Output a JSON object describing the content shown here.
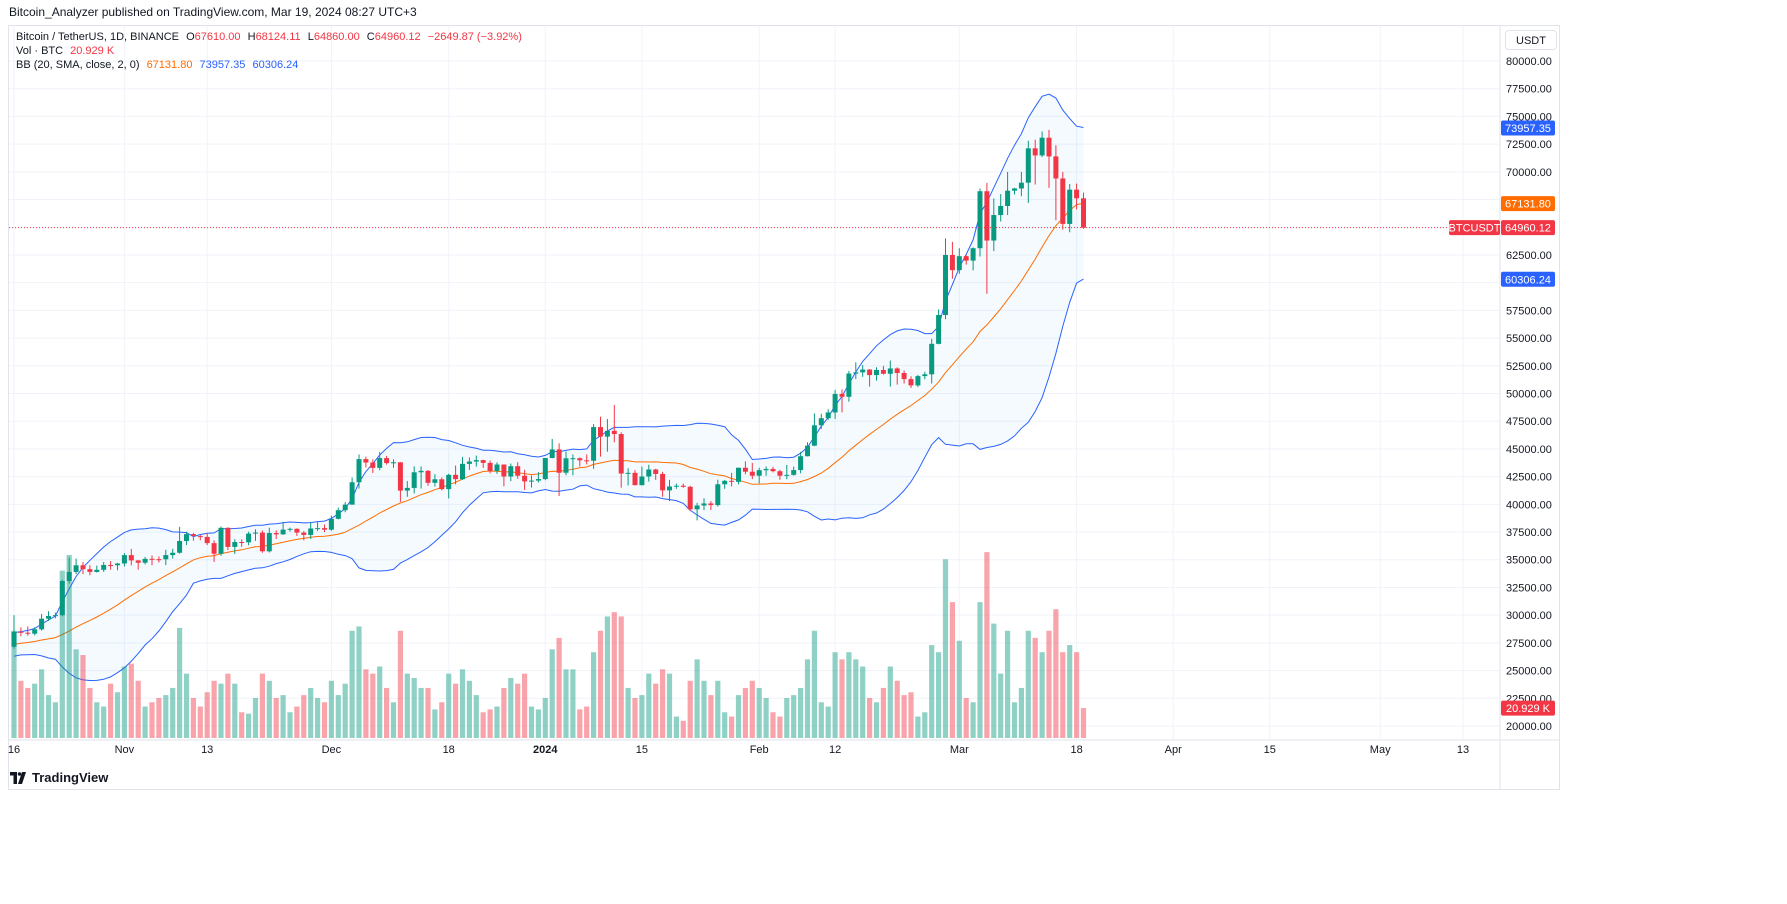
{
  "publisher_line": "Bitcoin_Analyzer published on TradingView.com, Mar 19, 2024 08:27 UTC+3",
  "legend": {
    "symbol": "Bitcoin / TetherUS, 1D, BINANCE",
    "o_label": "O",
    "o": "67610.00",
    "h_label": "H",
    "h": "68124.11",
    "l_label": "L",
    "l": "64860.00",
    "c_label": "C",
    "c": "64960.12",
    "change": "−2649.87 (−3.92%)",
    "vol_label": "Vol · BTC",
    "vol": "20.929 K",
    "bb_label": "BB (20, SMA, close, 2, 0)",
    "bb_mid": "67131.80",
    "bb_upper": "73957.35",
    "bb_lower": "60306.24"
  },
  "price_axis": {
    "unit": "USDT",
    "ticks": [
      "80000.00",
      "77500.00",
      "75000.00",
      "72500.00",
      "70000.00",
      "62500.00",
      "57500.00",
      "55000.00",
      "52500.00",
      "50000.00",
      "47500.00",
      "45000.00",
      "42500.00",
      "40000.00",
      "37500.00",
      "35000.00",
      "32500.00",
      "30000.00",
      "27500.00",
      "25000.00",
      "22500.00",
      "20000.00"
    ],
    "badges": {
      "upper": {
        "text": "73957.35",
        "value": 73957.35,
        "color": "#2962FF"
      },
      "mid": {
        "text": "67131.80",
        "value": 67131.8,
        "color": "#FF6D00"
      },
      "last": {
        "text": "64960.12",
        "value": 64960.12,
        "color": "#F23645",
        "symbol": "BTCUSDT"
      },
      "lower": {
        "text": "60306.24",
        "value": 60306.24,
        "color": "#2962FF"
      },
      "volume": {
        "text": "20.929 K",
        "value": 20.929,
        "color": "#F23645"
      }
    }
  },
  "time_axis": {
    "ticks": [
      {
        "label": "16",
        "date": "2023-10-16"
      },
      {
        "label": "Nov",
        "date": "2023-11-01"
      },
      {
        "label": "13",
        "date": "2023-11-13"
      },
      {
        "label": "Dec",
        "date": "2023-12-01"
      },
      {
        "label": "18",
        "date": "2023-12-18"
      },
      {
        "label": "2024",
        "date": "2024-01-01"
      },
      {
        "label": "15",
        "date": "2024-01-15"
      },
      {
        "label": "Feb",
        "date": "2024-02-01"
      },
      {
        "label": "12",
        "date": "2024-02-12"
      },
      {
        "label": "Mar",
        "date": "2024-03-01"
      },
      {
        "label": "18",
        "date": "2024-03-18"
      },
      {
        "label": "Apr",
        "date": "2024-04-01"
      },
      {
        "label": "15",
        "date": "2024-04-15"
      },
      {
        "label": "May",
        "date": "2024-05-01"
      },
      {
        "label": "13",
        "date": "2024-05-13"
      }
    ]
  },
  "footer": {
    "brand": "TradingView"
  },
  "colors": {
    "up": "#089981",
    "down": "#F23645",
    "bb_band": "#2962FF",
    "bb_mid": "#FF6D00",
    "grid": "#f0f3fa"
  },
  "chart_data": {
    "type": "candlestick",
    "symbol": "BTCUSDT",
    "interval": "1D",
    "first_date": "2023-10-16",
    "ylim": [
      20000,
      80000
    ],
    "grid": true,
    "indicators": [
      "Volume (BTC, K)",
      "Bollinger Bands (20, SMA, close, 2, 0)"
    ],
    "candles_ohlcv": [
      [
        27150,
        30000,
        26970,
        28500,
        75
      ],
      [
        28500,
        28900,
        28100,
        28415,
        40
      ],
      [
        28415,
        28980,
        28150,
        28330,
        35
      ],
      [
        28330,
        28900,
        28180,
        28720,
        38
      ],
      [
        28720,
        30100,
        28600,
        29680,
        48
      ],
      [
        29680,
        30350,
        29480,
        29920,
        30
      ],
      [
        29920,
        30230,
        29720,
        30000,
        25
      ],
      [
        30000,
        33200,
        29900,
        33080,
        117
      ],
      [
        33080,
        35200,
        32850,
        33900,
        128
      ],
      [
        33900,
        35100,
        33700,
        34500,
        62
      ],
      [
        34500,
        34800,
        33700,
        34150,
        58
      ],
      [
        34150,
        34500,
        33600,
        33900,
        35
      ],
      [
        33900,
        34470,
        33850,
        34090,
        25
      ],
      [
        34090,
        34800,
        33900,
        34530,
        22
      ],
      [
        34530,
        34880,
        34100,
        34500,
        38
      ],
      [
        34500,
        34720,
        34050,
        34660,
        32
      ],
      [
        34660,
        35600,
        34400,
        35420,
        50
      ],
      [
        35420,
        35980,
        34500,
        34940,
        52
      ],
      [
        34940,
        34950,
        34100,
        34730,
        40
      ],
      [
        34730,
        35250,
        34570,
        35080,
        22
      ],
      [
        35080,
        35380,
        34500,
        35050,
        25
      ],
      [
        35050,
        35300,
        34750,
        35040,
        28
      ],
      [
        35040,
        35900,
        34520,
        35420,
        30
      ],
      [
        35420,
        35990,
        35110,
        35630,
        35
      ],
      [
        35630,
        37970,
        35540,
        36690,
        77
      ],
      [
        36690,
        37530,
        36330,
        37310,
        45
      ],
      [
        37310,
        37420,
        36720,
        37130,
        28
      ],
      [
        37130,
        37230,
        36760,
        37060,
        22
      ],
      [
        37060,
        37420,
        36320,
        36500,
        32
      ],
      [
        36500,
        36750,
        34800,
        35540,
        40
      ],
      [
        35540,
        37990,
        35360,
        37880,
        38
      ],
      [
        37880,
        37930,
        35870,
        36160,
        45
      ],
      [
        36160,
        36850,
        35520,
        36600,
        38
      ],
      [
        36600,
        36850,
        36160,
        36570,
        18
      ],
      [
        36570,
        37530,
        36300,
        37360,
        17
      ],
      [
        37360,
        37750,
        36700,
        37450,
        28
      ],
      [
        37450,
        37650,
        35630,
        35760,
        45
      ],
      [
        35760,
        37880,
        35650,
        37410,
        40
      ],
      [
        37410,
        37650,
        36870,
        37290,
        28
      ],
      [
        37290,
        38420,
        37250,
        37720,
        30
      ],
      [
        37720,
        37900,
        37540,
        37790,
        18
      ],
      [
        37790,
        37830,
        37150,
        37450,
        22
      ],
      [
        37450,
        37580,
        36750,
        37240,
        30
      ],
      [
        37240,
        38380,
        36880,
        37820,
        35
      ],
      [
        37820,
        38450,
        37600,
        37850,
        28
      ],
      [
        37850,
        38170,
        37500,
        37710,
        25
      ],
      [
        37710,
        38970,
        37610,
        38690,
        40
      ],
      [
        38690,
        39700,
        38650,
        39470,
        30
      ],
      [
        39470,
        40200,
        39290,
        39970,
        38
      ],
      [
        39970,
        42420,
        39970,
        41990,
        75
      ],
      [
        41990,
        44490,
        41430,
        44080,
        78
      ],
      [
        44080,
        44300,
        43330,
        43770,
        48
      ],
      [
        43770,
        44050,
        42830,
        43290,
        45
      ],
      [
        43290,
        44730,
        43080,
        44170,
        50
      ],
      [
        44170,
        44370,
        43580,
        43720,
        35
      ],
      [
        43720,
        44050,
        43300,
        43790,
        25
      ],
      [
        43790,
        43800,
        40220,
        41240,
        75
      ],
      [
        41240,
        42100,
        40680,
        41480,
        45
      ],
      [
        41480,
        43430,
        40980,
        42890,
        42
      ],
      [
        42890,
        43420,
        41420,
        43020,
        35
      ],
      [
        43020,
        43100,
        41660,
        41940,
        35
      ],
      [
        41940,
        42720,
        41600,
        42260,
        20
      ],
      [
        42260,
        42420,
        41250,
        41370,
        25
      ],
      [
        41370,
        42760,
        40530,
        42660,
        45
      ],
      [
        42660,
        43500,
        41800,
        42270,
        38
      ],
      [
        42270,
        44280,
        42190,
        43650,
        48
      ],
      [
        43650,
        44230,
        43100,
        43860,
        40
      ],
      [
        43860,
        44400,
        43400,
        43990,
        30
      ],
      [
        43990,
        44020,
        43290,
        43740,
        18
      ],
      [
        43740,
        43950,
        42800,
        43010,
        20
      ],
      [
        43010,
        43800,
        42750,
        43590,
        22
      ],
      [
        43590,
        43600,
        41620,
        42510,
        35
      ],
      [
        42510,
        43680,
        42100,
        43440,
        42
      ],
      [
        43440,
        43800,
        42300,
        42580,
        38
      ],
      [
        42580,
        43120,
        41300,
        42070,
        45
      ],
      [
        42070,
        42600,
        41520,
        42140,
        22
      ],
      [
        42140,
        42900,
        41970,
        42280,
        20
      ],
      [
        42280,
        44180,
        42180,
        44180,
        28
      ],
      [
        44180,
        45900,
        44150,
        44950,
        62
      ],
      [
        44950,
        45500,
        40750,
        42850,
        70
      ],
      [
        42850,
        44770,
        42620,
        44150,
        48
      ],
      [
        44150,
        44500,
        42620,
        44160,
        48
      ],
      [
        44160,
        44230,
        43400,
        43970,
        20
      ],
      [
        43970,
        44500,
        43600,
        43930,
        22
      ],
      [
        43930,
        47250,
        43200,
        46970,
        60
      ],
      [
        46970,
        47900,
        44300,
        46110,
        75
      ],
      [
        46110,
        47700,
        44750,
        46630,
        85
      ],
      [
        46630,
        48970,
        45600,
        46340,
        88
      ],
      [
        46340,
        46500,
        41500,
        42780,
        85
      ],
      [
        42780,
        43250,
        41700,
        42840,
        35
      ],
      [
        42840,
        43080,
        41710,
        41730,
        28
      ],
      [
        41730,
        43400,
        41700,
        42510,
        30
      ],
      [
        42510,
        43570,
        42050,
        43140,
        45
      ],
      [
        43140,
        43200,
        42200,
        42740,
        38
      ],
      [
        42740,
        42930,
        40680,
        41260,
        48
      ],
      [
        41260,
        42200,
        40280,
        41610,
        45
      ],
      [
        41610,
        41870,
        41400,
        41680,
        15
      ],
      [
        41680,
        41870,
        41500,
        41580,
        12
      ],
      [
        41580,
        41670,
        39430,
        39550,
        40
      ],
      [
        39550,
        40130,
        38550,
        39890,
        55
      ],
      [
        39890,
        40550,
        39480,
        40080,
        40
      ],
      [
        40080,
        40290,
        39480,
        39930,
        30
      ],
      [
        39930,
        42220,
        39800,
        41810,
        40
      ],
      [
        41810,
        42200,
        41400,
        42120,
        18
      ],
      [
        42120,
        42840,
        41620,
        42030,
        15
      ],
      [
        42030,
        43310,
        41800,
        43300,
        30
      ],
      [
        43300,
        43880,
        42700,
        42940,
        35
      ],
      [
        42940,
        43740,
        42270,
        42580,
        40
      ],
      [
        42580,
        43300,
        41890,
        43080,
        35
      ],
      [
        43080,
        43420,
        42580,
        43190,
        28
      ],
      [
        43190,
        43380,
        42880,
        42990,
        18
      ],
      [
        42990,
        43120,
        42220,
        42580,
        15
      ],
      [
        42580,
        43550,
        42260,
        42660,
        28
      ],
      [
        42660,
        43400,
        42580,
        43090,
        30
      ],
      [
        43090,
        44730,
        42800,
        44340,
        35
      ],
      [
        44340,
        45600,
        44330,
        45290,
        55
      ],
      [
        45290,
        48200,
        45250,
        47130,
        75
      ],
      [
        47130,
        48170,
        46800,
        47770,
        25
      ],
      [
        47770,
        48580,
        47630,
        48290,
        22
      ],
      [
        48290,
        50330,
        47710,
        49960,
        60
      ],
      [
        49960,
        50370,
        48300,
        49700,
        55
      ],
      [
        49700,
        52040,
        49260,
        51800,
        60
      ],
      [
        51800,
        52820,
        51300,
        51910,
        55
      ],
      [
        51910,
        52570,
        51500,
        52160,
        50
      ],
      [
        52160,
        52200,
        50620,
        51660,
        28
      ],
      [
        51660,
        52370,
        51160,
        52120,
        25
      ],
      [
        52120,
        52490,
        51700,
        51780,
        35
      ],
      [
        51780,
        52970,
        50620,
        52260,
        50
      ],
      [
        52260,
        52360,
        50800,
        51850,
        40
      ],
      [
        51850,
        52080,
        50900,
        51300,
        30
      ],
      [
        51300,
        51560,
        50500,
        50730,
        32
      ],
      [
        50730,
        51680,
        50580,
        51570,
        15
      ],
      [
        51570,
        51960,
        51280,
        51730,
        18
      ],
      [
        51730,
        54930,
        50900,
        54480,
        65
      ],
      [
        54480,
        57590,
        54440,
        57080,
        60
      ],
      [
        57080,
        64000,
        56700,
        62500,
        125
      ],
      [
        62500,
        63680,
        60350,
        61130,
        95
      ],
      [
        61130,
        63110,
        60800,
        62390,
        68
      ],
      [
        62390,
        62480,
        61630,
        61990,
        28
      ],
      [
        61990,
        63180,
        61110,
        63110,
        25
      ],
      [
        63110,
        68500,
        62360,
        68250,
        95
      ],
      [
        68250,
        69000,
        59000,
        63800,
        130
      ],
      [
        63800,
        67600,
        62850,
        66100,
        80
      ],
      [
        66100,
        67990,
        65520,
        66920,
        45
      ],
      [
        66920,
        69990,
        66100,
        68300,
        75
      ],
      [
        68300,
        68550,
        67950,
        68500,
        25
      ],
      [
        68500,
        70000,
        67800,
        69020,
        35
      ],
      [
        69020,
        72800,
        67200,
        72120,
        75
      ],
      [
        72120,
        72900,
        68850,
        71480,
        70
      ],
      [
        71480,
        73650,
        71330,
        73080,
        60
      ],
      [
        73080,
        73780,
        68550,
        71390,
        75
      ],
      [
        71390,
        72400,
        65630,
        69400,
        90
      ],
      [
        69400,
        70000,
        64780,
        65300,
        60
      ],
      [
        65300,
        68900,
        64550,
        68390,
        65
      ],
      [
        68390,
        68940,
        66600,
        67610,
        60
      ],
      [
        67610,
        68124.11,
        64860,
        64960.12,
        20.929
      ]
    ]
  }
}
